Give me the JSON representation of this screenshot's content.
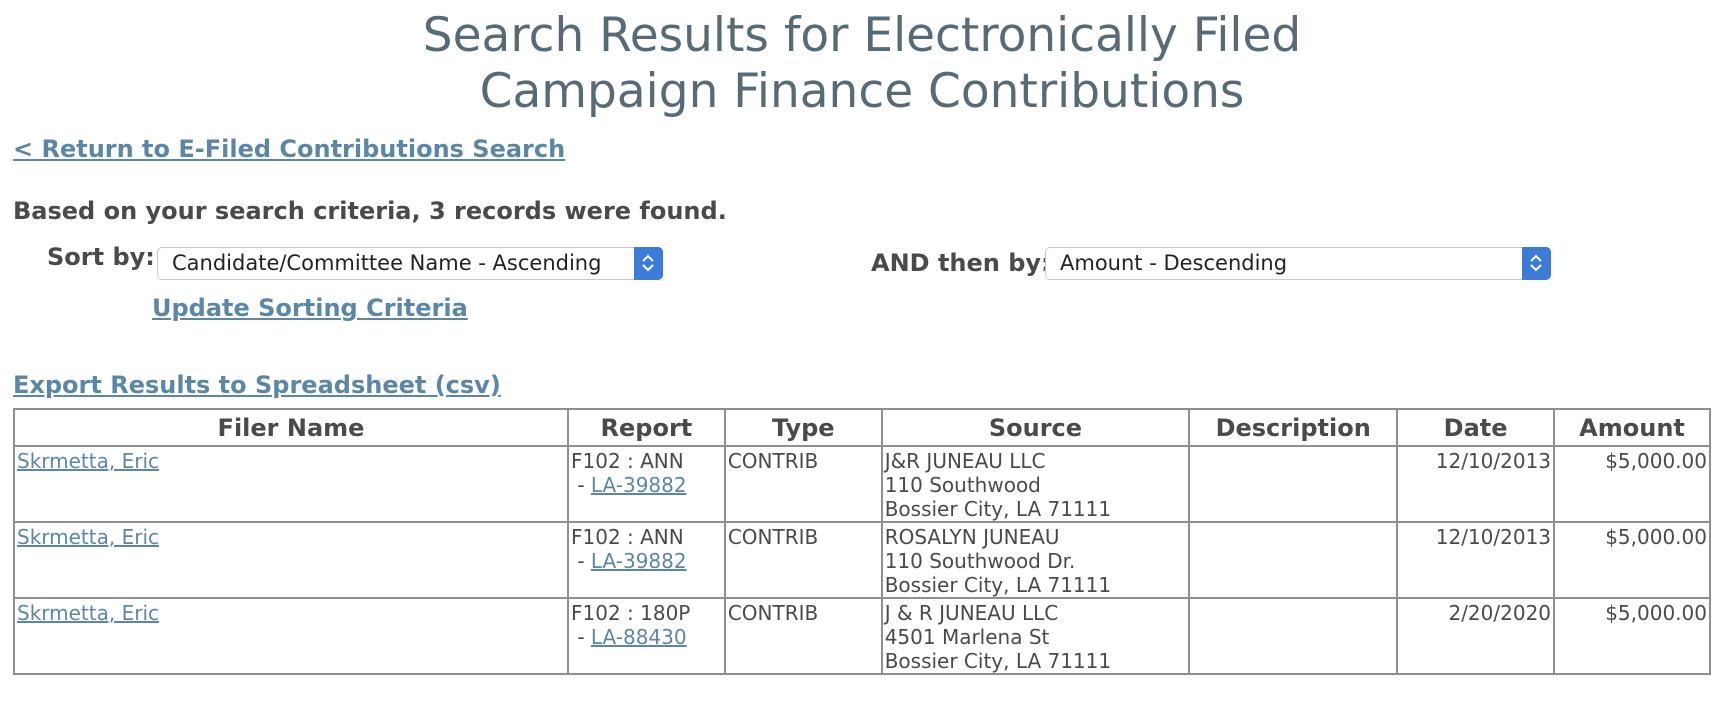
{
  "header": {
    "title_line1": "Search Results for Electronically Filed",
    "title_line2": "Campaign Finance Contributions"
  },
  "nav": {
    "return_link": "< Return to E-Filed Contributions Search"
  },
  "summary": {
    "records_found": "Based on your search criteria, 3 records were found."
  },
  "sorting": {
    "sort_by_label": "Sort by:",
    "sort_by_value": "Candidate/Committee Name - Ascending",
    "then_by_label": "AND then by:",
    "then_by_value": "Amount - Descending",
    "update_link": "Update Sorting Criteria"
  },
  "export": {
    "link": "Export Results to Spreadsheet (csv)"
  },
  "table": {
    "columns": [
      "Filer Name",
      "Report",
      "Type",
      "Source",
      "Description",
      "Date",
      "Amount"
    ],
    "rows": [
      {
        "filer": "Skrmetta, Eric",
        "report_form": "F102 : ANN",
        "report_prefix": " - ",
        "report_id": "LA-39882",
        "type": "CONTRIB",
        "source_name": "J&R JUNEAU LLC",
        "source_street": "110 Southwood",
        "source_city": "Bossier City, LA 71111",
        "description": "",
        "date": "12/10/2013",
        "amount": "$5,000.00"
      },
      {
        "filer": "Skrmetta, Eric",
        "report_form": "F102 : ANN",
        "report_prefix": " - ",
        "report_id": "LA-39882",
        "type": "CONTRIB",
        "source_name": "ROSALYN JUNEAU",
        "source_street": "110 Southwood Dr.",
        "source_city": "Bossier City, LA 71111",
        "description": "",
        "date": "12/10/2013",
        "amount": "$5,000.00"
      },
      {
        "filer": "Skrmetta, Eric",
        "report_form": "F102 : 180P",
        "report_prefix": " - ",
        "report_id": "LA-88430",
        "type": "CONTRIB",
        "source_name": "J & R JUNEAU LLC",
        "source_street": "4501 Marlena St",
        "source_city": "Bossier City, LA 71111",
        "description": "",
        "date": "2/20/2020",
        "amount": "$5,000.00"
      }
    ]
  },
  "colors": {
    "title": "#566b75",
    "link": "#5b87a6",
    "select_accent": "#3d7bd9",
    "table_border": "#8f8f8f"
  },
  "icons": {
    "select_arrows": "up-down-chevron-icon"
  }
}
